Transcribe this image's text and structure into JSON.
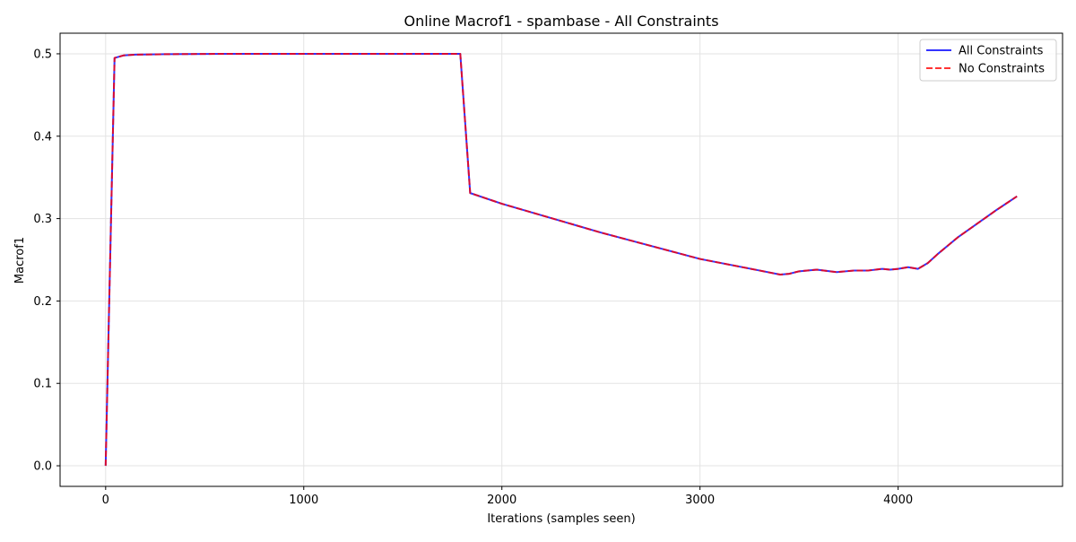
{
  "chart_data": {
    "type": "line",
    "title": "Online Macrof1 - spambase - All Constraints",
    "xlabel": "Iterations (samples seen)",
    "ylabel": "Macrof1",
    "xlim": [
      -230,
      4830
    ],
    "ylim": [
      -0.025,
      0.525
    ],
    "xticks": [
      0,
      1000,
      2000,
      3000,
      4000
    ],
    "yticks": [
      0.0,
      0.1,
      0.2,
      0.3,
      0.4,
      0.5
    ],
    "ytick_labels": [
      "0.0",
      "0.1",
      "0.2",
      "0.3",
      "0.4",
      "0.5"
    ],
    "grid": true,
    "legend_position": "top-right",
    "series": [
      {
        "name": "All Constraints",
        "color": "#0000ff",
        "dash": "solid",
        "x": [
          0,
          45,
          90,
          150,
          300,
          600,
          1000,
          1400,
          1790,
          1840,
          2000,
          2500,
          3000,
          3300,
          3405,
          3450,
          3500,
          3590,
          3690,
          3780,
          3850,
          3920,
          3960,
          4000,
          4050,
          4100,
          4150,
          4200,
          4300,
          4400,
          4500,
          4600
        ],
        "values": [
          0.0,
          0.495,
          0.498,
          0.499,
          0.4995,
          0.5,
          0.5,
          0.5,
          0.5,
          0.331,
          0.318,
          0.283,
          0.251,
          0.237,
          0.232,
          0.233,
          0.236,
          0.238,
          0.235,
          0.237,
          0.237,
          0.239,
          0.238,
          0.239,
          0.241,
          0.239,
          0.246,
          0.257,
          0.277,
          0.294,
          0.311,
          0.327
        ]
      },
      {
        "name": "No Constraints",
        "color": "#ff0000",
        "dash": "dashed",
        "x": [
          0,
          45,
          90,
          150,
          300,
          600,
          1000,
          1400,
          1790,
          1840,
          2000,
          2500,
          3000,
          3300,
          3405,
          3450,
          3500,
          3590,
          3690,
          3780,
          3850,
          3920,
          3960,
          4000,
          4050,
          4100,
          4150,
          4200,
          4300,
          4400,
          4500,
          4600
        ],
        "values": [
          0.0,
          0.495,
          0.498,
          0.499,
          0.4995,
          0.5,
          0.5,
          0.5,
          0.5,
          0.331,
          0.318,
          0.283,
          0.251,
          0.237,
          0.232,
          0.233,
          0.236,
          0.238,
          0.235,
          0.237,
          0.237,
          0.239,
          0.238,
          0.239,
          0.241,
          0.239,
          0.246,
          0.257,
          0.277,
          0.294,
          0.311,
          0.327
        ]
      }
    ]
  }
}
